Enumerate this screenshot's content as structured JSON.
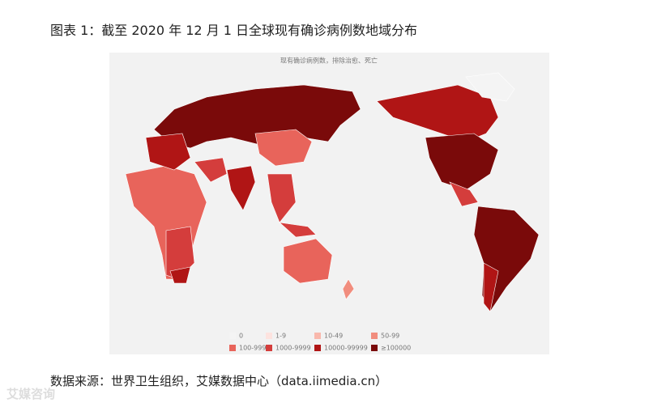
{
  "title": "图表 1：截至 2020 年 12 月 1 日全球现有确诊病例数地域分布",
  "map": {
    "subtitle": "现有确诊病例数，排除治愈、死亡",
    "legend": [
      {
        "label": "0",
        "color": "#f4f4f4"
      },
      {
        "label": "1-9",
        "color": "#fde3df"
      },
      {
        "label": "10-49",
        "color": "#f9b8ac"
      },
      {
        "label": "50-99",
        "color": "#f18d7e"
      },
      {
        "label": "100-999",
        "color": "#e8645b"
      },
      {
        "label": "1000-9999",
        "color": "#d43d3c"
      },
      {
        "label": "10000-99999",
        "color": "#b01515"
      },
      {
        "label": "≥100000",
        "color": "#7a0a0a"
      }
    ]
  },
  "source": "数据来源：世界卫生组织，艾媒数据中心（data.iimedia.cn）",
  "watermark": "艾媒咨询"
}
